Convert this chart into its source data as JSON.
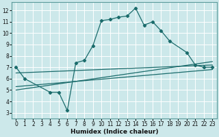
{
  "title": "",
  "xlabel": "Humidex (Indice chaleur)",
  "bg_color": "#cce8ea",
  "line_color": "#1a6b6b",
  "grid_color": "#ffffff",
  "xlim": [
    -0.5,
    23.5
  ],
  "ylim": [
    2.5,
    12.7
  ],
  "yticks": [
    3,
    4,
    5,
    6,
    7,
    8,
    9,
    10,
    11,
    12
  ],
  "xticks": [
    0,
    1,
    2,
    3,
    4,
    5,
    6,
    7,
    8,
    9,
    10,
    11,
    12,
    13,
    14,
    15,
    16,
    17,
    18,
    19,
    20,
    21,
    22,
    23
  ],
  "series": [
    {
      "x": [
        0,
        1,
        4,
        5,
        6,
        7,
        8,
        9,
        10,
        11,
        12,
        13,
        14,
        15,
        16,
        17,
        18,
        20,
        21,
        22,
        23
      ],
      "y": [
        7.0,
        6.0,
        4.8,
        4.8,
        3.2,
        7.4,
        7.6,
        8.9,
        11.1,
        11.2,
        11.4,
        11.5,
        12.2,
        10.7,
        11.0,
        10.2,
        9.3,
        8.3,
        7.2,
        7.0,
        7.0
      ]
    },
    {
      "x": [
        0,
        23
      ],
      "y": [
        6.5,
        7.2
      ]
    },
    {
      "x": [
        0,
        23
      ],
      "y": [
        5.3,
        6.8
      ]
    },
    {
      "x": [
        0,
        23
      ],
      "y": [
        5.0,
        7.5
      ]
    }
  ]
}
